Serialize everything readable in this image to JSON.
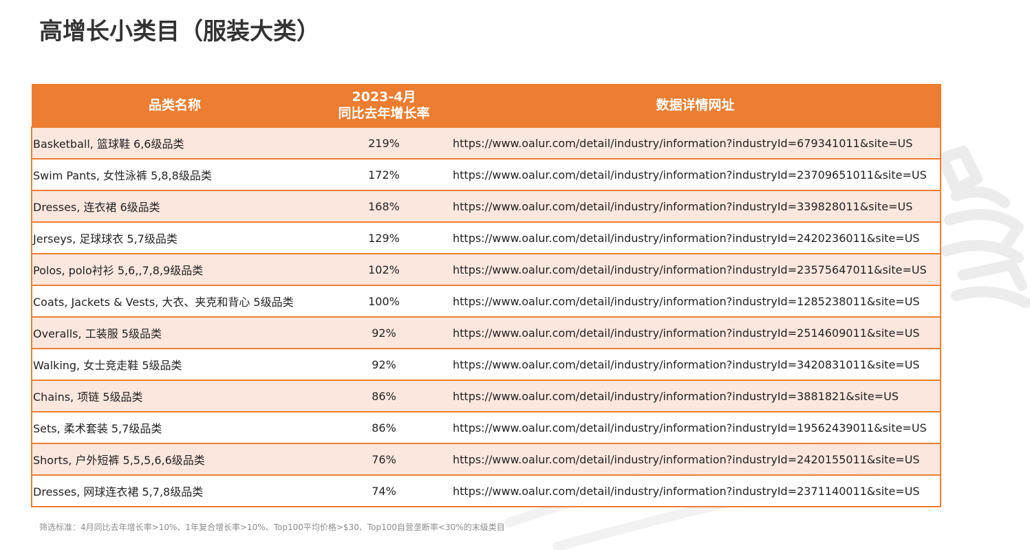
{
  "page": {
    "title": "高增长小类目（服装大类）",
    "footnote": "筛选标准：4月同比去年增长率>10%、1年复合增长率>10%、Top100平均价格>$30、Top100自营垄断率<30%的末级类目"
  },
  "table": {
    "headers": {
      "category": "品类名称",
      "growth_line1": "2023-4月",
      "growth_line2": "同比去年增长率",
      "url": "数据详情网址"
    },
    "rows": [
      {
        "category": "Basketball, 篮球鞋 6,6级品类",
        "growth": "219%",
        "url": "https://www.oalur.com/detail/industry/information?industryId=679341011&site=US"
      },
      {
        "category": "Swim Pants, 女性泳裤 5,8,8级品类",
        "growth": "172%",
        "url": "https://www.oalur.com/detail/industry/information?industryId=23709651011&site=US"
      },
      {
        "category": "Dresses, 连衣裙 6级品类",
        "growth": "168%",
        "url": "https://www.oalur.com/detail/industry/information?industryId=339828011&site=US"
      },
      {
        "category": "Jerseys, 足球球衣 5,7级品类",
        "growth": "129%",
        "url": "https://www.oalur.com/detail/industry/information?industryId=2420236011&site=US"
      },
      {
        "category": "Polos, polo衬衫 5,6,,7,8,9级品类",
        "growth": "102%",
        "url": "https://www.oalur.com/detail/industry/information?industryId=23575647011&site=US"
      },
      {
        "category": "Coats, Jackets & Vests, 大衣、夹克和背心 5级品类",
        "growth": "100%",
        "url": "https://www.oalur.com/detail/industry/information?industryId=1285238011&site=US"
      },
      {
        "category": "Overalls, 工装服 5级品类",
        "growth": "92%",
        "url": "https://www.oalur.com/detail/industry/information?industryId=2514609011&site=US"
      },
      {
        "category": "Walking, 女士竞走鞋 5级品类",
        "growth": "92%",
        "url": "https://www.oalur.com/detail/industry/information?industryId=3420831011&site=US"
      },
      {
        "category": "Chains, 项链 5级品类",
        "growth": "86%",
        "url": "https://www.oalur.com/detail/industry/information?industryId=3881821&site=US"
      },
      {
        "category": "Sets, 柔术套装 5,7级品类",
        "growth": "86%",
        "url": "https://www.oalur.com/detail/industry/information?industryId=19562439011&site=US"
      },
      {
        "category": "Shorts, 户外短裤 5,5,5,6,6级品类",
        "growth": "76%",
        "url": "https://www.oalur.com/detail/industry/information?industryId=2420155011&site=US"
      },
      {
        "category": "Dresses, 网球连衣裙 5,7,8级品类",
        "growth": "74%",
        "url": "https://www.oalur.com/detail/industry/information?industryId=2371140011&site=US"
      }
    ]
  },
  "colors": {
    "accent": "#ed7d31",
    "row_tint": "#fbe5db",
    "title": "#333333",
    "footnote": "#8c8c8c"
  }
}
